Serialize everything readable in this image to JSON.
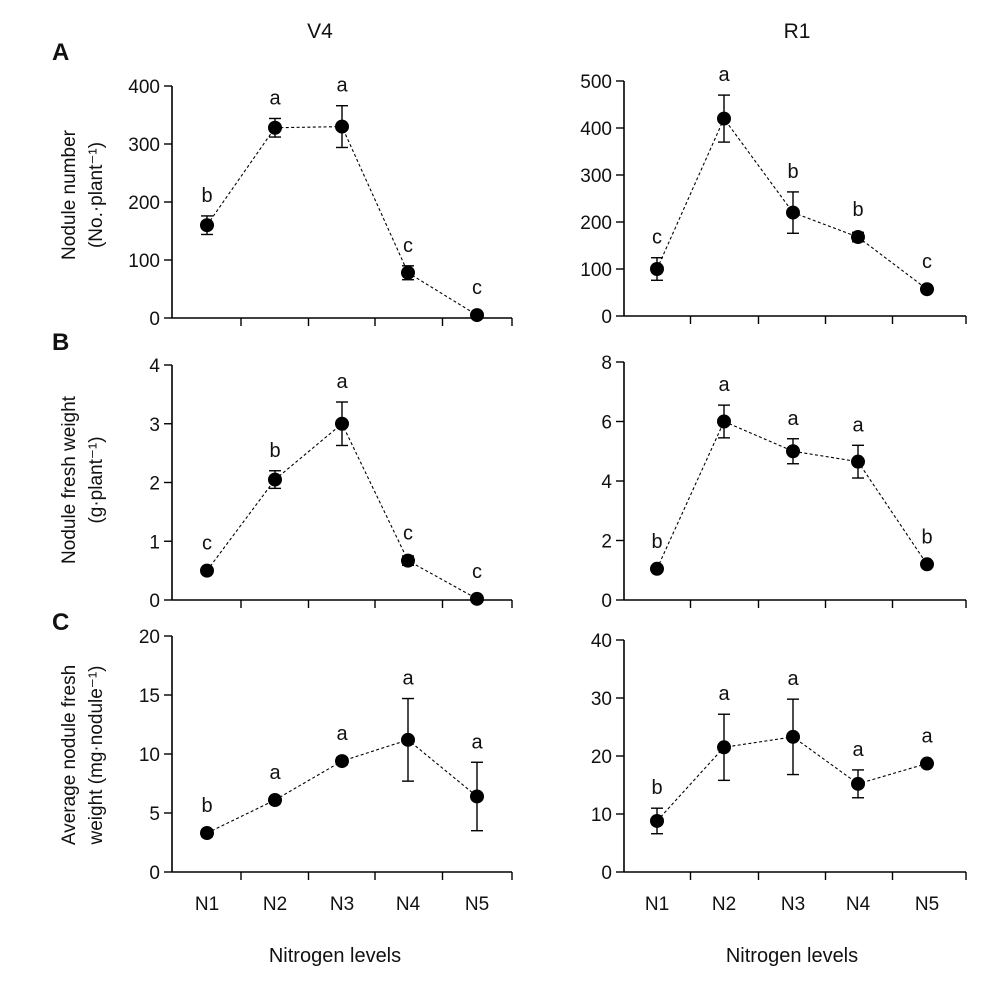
{
  "column_titles": [
    "V4",
    "R1"
  ],
  "row_letters": [
    "A",
    "B",
    "C"
  ],
  "ylabels": [
    [
      "Nodule number",
      "(No.·plant⁻¹)"
    ],
    [
      "Nodule fresh weight",
      "(g·plant⁻¹)"
    ],
    [
      "Average nodule fresh",
      "weight (mg·nodule⁻¹)"
    ]
  ],
  "xlabel": "Nitrogen levels",
  "chart_data": [
    {
      "type": "line",
      "panel": "A",
      "column": "V4",
      "categories": [
        "N1",
        "N2",
        "N3",
        "N4",
        "N5"
      ],
      "ylim": [
        0,
        400
      ],
      "yticks": [
        0,
        100,
        200,
        300,
        400
      ],
      "values": [
        160,
        328,
        330,
        78,
        5
      ],
      "errors": [
        16,
        16,
        36,
        12,
        3
      ],
      "letters": [
        "b",
        "a",
        "a",
        "c",
        "c"
      ]
    },
    {
      "type": "line",
      "panel": "A",
      "column": "R1",
      "categories": [
        "N1",
        "N2",
        "N3",
        "N4",
        "N5"
      ],
      "ylim": [
        0,
        500
      ],
      "yticks": [
        0,
        100,
        200,
        300,
        400,
        500
      ],
      "values": [
        100,
        420,
        220,
        168,
        57
      ],
      "errors": [
        24,
        50,
        44,
        10,
        4
      ],
      "letters": [
        "c",
        "a",
        "b",
        "b",
        "c"
      ]
    },
    {
      "type": "line",
      "panel": "B",
      "column": "V4",
      "categories": [
        "N1",
        "N2",
        "N3",
        "N4",
        "N5"
      ],
      "ylim": [
        0,
        4
      ],
      "yticks": [
        0,
        1,
        2,
        3,
        4
      ],
      "values": [
        0.5,
        2.05,
        3.0,
        0.67,
        0.02
      ],
      "errors": [
        0.05,
        0.15,
        0.37,
        0.08,
        0.02
      ],
      "letters": [
        "c",
        "b",
        "a",
        "c",
        "c"
      ]
    },
    {
      "type": "line",
      "panel": "B",
      "column": "R1",
      "categories": [
        "N1",
        "N2",
        "N3",
        "N4",
        "N5"
      ],
      "ylim": [
        0,
        8
      ],
      "yticks": [
        0,
        2,
        4,
        6,
        8
      ],
      "values": [
        1.05,
        6.0,
        5.0,
        4.65,
        1.2
      ],
      "errors": [
        0.08,
        0.55,
        0.42,
        0.55,
        0.08
      ],
      "letters": [
        "b",
        "a",
        "a",
        "a",
        "b"
      ]
    },
    {
      "type": "line",
      "panel": "C",
      "column": "V4",
      "categories": [
        "N1",
        "N2",
        "N3",
        "N4",
        "N5"
      ],
      "ylim": [
        0,
        20
      ],
      "yticks": [
        0,
        5,
        10,
        15,
        20
      ],
      "values": [
        3.3,
        6.1,
        9.4,
        11.2,
        6.4
      ],
      "errors": [
        0.3,
        0.3,
        0.3,
        3.5,
        2.9
      ],
      "letters": [
        "b",
        "a",
        "a",
        "a",
        "a"
      ]
    },
    {
      "type": "line",
      "panel": "C",
      "column": "R1",
      "categories": [
        "N1",
        "N2",
        "N3",
        "N4",
        "N5"
      ],
      "ylim": [
        0,
        40
      ],
      "yticks": [
        0,
        10,
        20,
        30,
        40
      ],
      "values": [
        8.8,
        21.5,
        23.3,
        15.2,
        18.7
      ],
      "errors": [
        2.2,
        5.7,
        6.5,
        2.4,
        0.4
      ],
      "letters": [
        "b",
        "a",
        "a",
        "a",
        "a"
      ]
    }
  ]
}
